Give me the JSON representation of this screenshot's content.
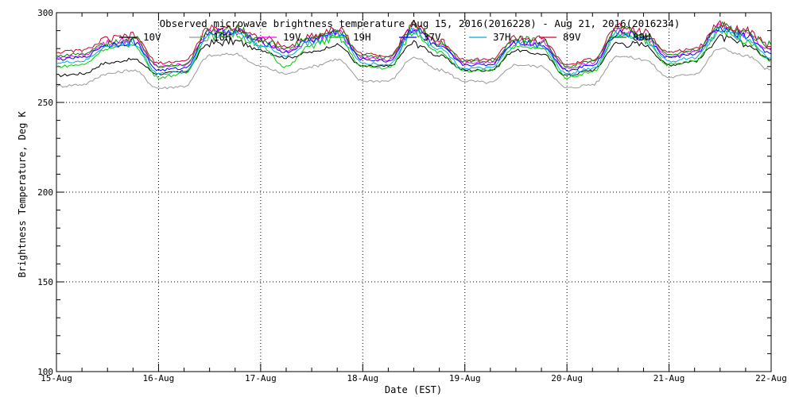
{
  "chart_data": {
    "type": "line",
    "title": "Observed microwave brightness temperature Aug 15, 2016(2016228) - Aug 21, 2016(2016234)",
    "xlabel": "Date (EST)",
    "ylabel": "Brightness Temperature, Deg K",
    "xlim": [
      "15-Aug",
      "22-Aug"
    ],
    "ylim": [
      100,
      300
    ],
    "x_ticks": [
      "15-Aug",
      "16-Aug",
      "17-Aug",
      "18-Aug",
      "19-Aug",
      "20-Aug",
      "21-Aug",
      "22-Aug"
    ],
    "y_ticks": [
      100,
      150,
      200,
      250,
      300
    ],
    "grid": true,
    "legend_position": "top",
    "x": [
      "15-Aug 00:00",
      "15-Aug 06:00",
      "15-Aug 12:00",
      "15-Aug 18:00",
      "16-Aug 00:00",
      "16-Aug 06:00",
      "16-Aug 12:00",
      "16-Aug 18:00",
      "17-Aug 00:00",
      "17-Aug 06:00",
      "17-Aug 12:00",
      "17-Aug 18:00",
      "18-Aug 00:00",
      "18-Aug 06:00",
      "18-Aug 12:00",
      "18-Aug 18:00",
      "19-Aug 00:00",
      "19-Aug 06:00",
      "19-Aug 12:00",
      "19-Aug 18:00",
      "20-Aug 00:00",
      "20-Aug 06:00",
      "20-Aug 12:00",
      "20-Aug 18:00",
      "21-Aug 00:00",
      "21-Aug 06:00",
      "21-Aug 12:00",
      "21-Aug 18:00",
      "22-Aug 00:00"
    ],
    "series": [
      {
        "name": "10V",
        "color": "#000000",
        "values": [
          265,
          266,
          272,
          274,
          266,
          267,
          283,
          284,
          279,
          275,
          278,
          282,
          270,
          270,
          283,
          276,
          268,
          268,
          279,
          277,
          265,
          268,
          283,
          282,
          271,
          273,
          286,
          282,
          274
        ]
      },
      {
        "name": "10H",
        "color": "#999999",
        "values": [
          259,
          260,
          266,
          268,
          258,
          259,
          276,
          277,
          270,
          266,
          270,
          274,
          262,
          262,
          275,
          268,
          262,
          261,
          271,
          270,
          258,
          260,
          276,
          274,
          264,
          266,
          280,
          276,
          268
        ]
      },
      {
        "name": "19V",
        "color": "#ff00ff",
        "values": [
          275,
          276,
          283,
          285,
          270,
          271,
          289,
          290,
          284,
          279,
          285,
          289,
          275,
          274,
          291,
          282,
          272,
          272,
          284,
          283,
          269,
          272,
          290,
          287,
          276,
          278,
          292,
          288,
          279
        ]
      },
      {
        "name": "19H",
        "color": "#00cc00",
        "values": [
          270,
          271,
          280,
          282,
          264,
          266,
          287,
          288,
          281,
          270,
          282,
          286,
          270,
          269,
          289,
          278,
          267,
          268,
          281,
          280,
          264,
          267,
          288,
          285,
          271,
          273,
          290,
          285,
          273
        ]
      },
      {
        "name": "37V",
        "color": "#0000ff",
        "values": [
          274,
          275,
          282,
          284,
          268,
          269,
          289,
          290,
          284,
          278,
          285,
          289,
          274,
          273,
          291,
          281,
          271,
          271,
          284,
          282,
          268,
          271,
          289,
          286,
          275,
          277,
          291,
          287,
          277
        ]
      },
      {
        "name": "37H",
        "color": "#00aadd",
        "values": [
          272,
          273,
          281,
          283,
          266,
          267,
          288,
          289,
          282,
          276,
          284,
          288,
          272,
          271,
          290,
          280,
          269,
          269,
          283,
          281,
          266,
          269,
          288,
          285,
          273,
          275,
          290,
          286,
          275
        ]
      },
      {
        "name": "89V",
        "color": "#cc0033",
        "values": [
          278,
          279,
          285,
          287,
          272,
          273,
          291,
          292,
          286,
          281,
          287,
          291,
          277,
          276,
          293,
          284,
          274,
          274,
          286,
          285,
          271,
          274,
          292,
          289,
          278,
          280,
          294,
          290,
          281
        ]
      },
      {
        "name": "89H",
        "color": "#008800",
        "values": [
          276,
          277,
          284,
          286,
          270,
          271,
          290,
          291,
          285,
          280,
          286,
          290,
          276,
          275,
          292,
          283,
          273,
          273,
          285,
          284,
          270,
          273,
          291,
          288,
          277,
          279,
          293,
          289,
          282
        ]
      }
    ]
  }
}
